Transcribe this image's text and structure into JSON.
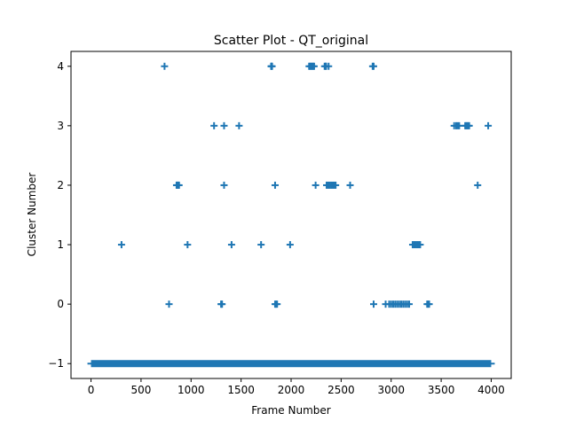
{
  "chart_data": {
    "type": "scatter",
    "title": "Scatter Plot - QT_original",
    "xlabel": "Frame Number",
    "ylabel": "Cluster Number",
    "xlim": [
      -200,
      4200
    ],
    "ylim": [
      -1.25,
      4.25
    ],
    "xticks": [
      0,
      500,
      1000,
      1500,
      2000,
      2500,
      3000,
      3500,
      4000
    ],
    "yticks": [
      -1,
      0,
      1,
      2,
      3,
      4
    ],
    "grid": false,
    "legend": "none",
    "marker": "plus",
    "color": "#1f77b4",
    "noise_band": {
      "cluster": -1,
      "x_range": [
        0,
        4000
      ]
    },
    "series": [
      {
        "cluster": 4,
        "x": [
          735,
          1800,
          1805,
          1810,
          2180,
          2190,
          2200,
          2210,
          2220,
          2230,
          2335,
          2345,
          2350,
          2375,
          2815,
          2825
        ]
      },
      {
        "cluster": 3,
        "x": [
          1230,
          1330,
          1480,
          3630,
          3650,
          3665,
          3680,
          3740,
          3750,
          3760,
          3770,
          3780,
          3970
        ]
      },
      {
        "cluster": 2,
        "x": [
          855,
          860,
          865,
          870,
          875,
          880,
          1330,
          1840,
          2245,
          2355,
          2370,
          2385,
          2400,
          2415,
          2430,
          2445,
          2590,
          3865
        ]
      },
      {
        "cluster": 1,
        "x": [
          305,
          965,
          1405,
          1700,
          1990,
          3215,
          3230,
          3245,
          3260,
          3275,
          3290
        ]
      },
      {
        "cluster": 0,
        "x": [
          780,
          1300,
          1305,
          1310,
          1840,
          1850,
          1860,
          2825,
          2945,
          2980,
          3000,
          3020,
          3040,
          3060,
          3080,
          3100,
          3120,
          3140,
          3160,
          3180,
          3360,
          3370,
          3380
        ]
      }
    ]
  }
}
